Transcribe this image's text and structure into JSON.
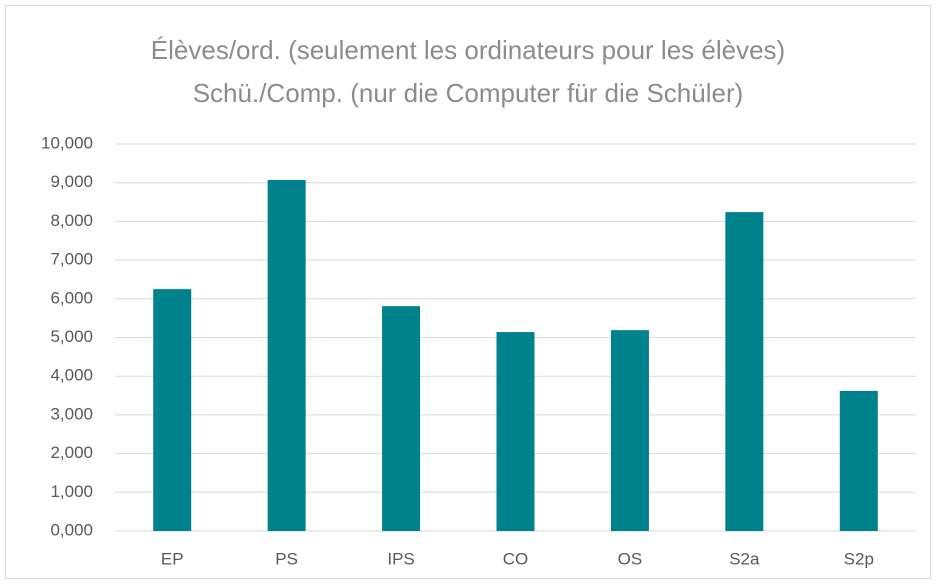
{
  "chart_data": {
    "type": "bar",
    "title": [
      "Élèves/ord. (seulement les ordinateurs pour les élèves)",
      "Schü./Comp. (nur die Computer für die Schüler)"
    ],
    "categories": [
      "EP",
      "PS",
      "IPS",
      "CO",
      "OS",
      "S2a",
      "S2p"
    ],
    "values": [
      6.25,
      9.07,
      5.81,
      5.14,
      5.19,
      8.24,
      3.62
    ],
    "color": "#00828c",
    "ylim": [
      0,
      10
    ],
    "yticks": [
      {
        "value": 0,
        "label": "0,000"
      },
      {
        "value": 1,
        "label": "1,000"
      },
      {
        "value": 2,
        "label": "2,000"
      },
      {
        "value": 3,
        "label": "3,000"
      },
      {
        "value": 4,
        "label": "4,000"
      },
      {
        "value": 5,
        "label": "5,000"
      },
      {
        "value": 6,
        "label": "6,000"
      },
      {
        "value": 7,
        "label": "7,000"
      },
      {
        "value": 8,
        "label": "8,000"
      },
      {
        "value": 9,
        "label": "9,000"
      },
      {
        "value": 10,
        "label": "10,000"
      }
    ],
    "grid": true
  }
}
